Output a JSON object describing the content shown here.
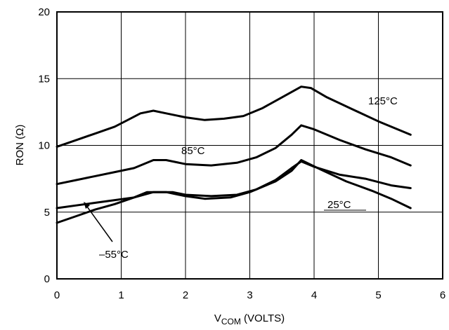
{
  "chart_data": {
    "type": "line",
    "xlabel_main": "V",
    "xlabel_sub": "COM",
    "xlabel_rest": " (VOLTS)",
    "ylabel": "RON (Ω)",
    "xlim": [
      0,
      6
    ],
    "ylim": [
      0,
      20
    ],
    "x_ticks": [
      "0",
      "1",
      "2",
      "3",
      "4",
      "5",
      "6"
    ],
    "y_ticks": [
      "0",
      "5",
      "10",
      "15",
      "20"
    ],
    "grid": true,
    "line_color": "#000000",
    "series": [
      {
        "name": "125°C",
        "points": [
          [
            0,
            9.9
          ],
          [
            0.3,
            10.4
          ],
          [
            0.6,
            10.9
          ],
          [
            0.9,
            11.4
          ],
          [
            1.1,
            11.9
          ],
          [
            1.3,
            12.4
          ],
          [
            1.5,
            12.6
          ],
          [
            1.7,
            12.4
          ],
          [
            2.0,
            12.1
          ],
          [
            2.3,
            11.9
          ],
          [
            2.6,
            12.0
          ],
          [
            2.9,
            12.2
          ],
          [
            3.2,
            12.8
          ],
          [
            3.5,
            13.6
          ],
          [
            3.8,
            14.4
          ],
          [
            3.95,
            14.3
          ],
          [
            4.2,
            13.6
          ],
          [
            4.6,
            12.7
          ],
          [
            5.0,
            11.8
          ],
          [
            5.5,
            10.8
          ]
        ]
      },
      {
        "name": "85°C",
        "points": [
          [
            0,
            7.1
          ],
          [
            0.3,
            7.4
          ],
          [
            0.6,
            7.7
          ],
          [
            0.9,
            8.0
          ],
          [
            1.2,
            8.3
          ],
          [
            1.5,
            8.9
          ],
          [
            1.7,
            8.9
          ],
          [
            2.0,
            8.6
          ],
          [
            2.4,
            8.5
          ],
          [
            2.8,
            8.7
          ],
          [
            3.1,
            9.1
          ],
          [
            3.4,
            9.8
          ],
          [
            3.65,
            10.8
          ],
          [
            3.8,
            11.5
          ],
          [
            4.0,
            11.2
          ],
          [
            4.4,
            10.4
          ],
          [
            4.8,
            9.7
          ],
          [
            5.2,
            9.1
          ],
          [
            5.5,
            8.5
          ]
        ]
      },
      {
        "name": "25°C",
        "points": [
          [
            0,
            5.3
          ],
          [
            0.3,
            5.5
          ],
          [
            0.6,
            5.7
          ],
          [
            0.9,
            5.9
          ],
          [
            1.2,
            6.1
          ],
          [
            1.5,
            6.5
          ],
          [
            1.8,
            6.5
          ],
          [
            2.0,
            6.3
          ],
          [
            2.4,
            6.2
          ],
          [
            2.8,
            6.3
          ],
          [
            3.1,
            6.7
          ],
          [
            3.4,
            7.4
          ],
          [
            3.65,
            8.3
          ],
          [
            3.8,
            8.8
          ],
          [
            4.0,
            8.4
          ],
          [
            4.4,
            7.8
          ],
          [
            4.8,
            7.5
          ],
          [
            5.2,
            7.0
          ],
          [
            5.5,
            6.8
          ]
        ]
      },
      {
        "name": "–55°C",
        "points": [
          [
            0,
            4.2
          ],
          [
            0.3,
            4.7
          ],
          [
            0.6,
            5.2
          ],
          [
            0.9,
            5.6
          ],
          [
            1.2,
            6.1
          ],
          [
            1.4,
            6.5
          ],
          [
            1.7,
            6.5
          ],
          [
            2.0,
            6.2
          ],
          [
            2.3,
            6.0
          ],
          [
            2.7,
            6.1
          ],
          [
            3.0,
            6.5
          ],
          [
            3.4,
            7.3
          ],
          [
            3.65,
            8.1
          ],
          [
            3.8,
            8.9
          ],
          [
            4.1,
            8.2
          ],
          [
            4.5,
            7.3
          ],
          [
            4.9,
            6.6
          ],
          [
            5.2,
            6.0
          ],
          [
            5.5,
            5.3
          ]
        ]
      }
    ]
  }
}
